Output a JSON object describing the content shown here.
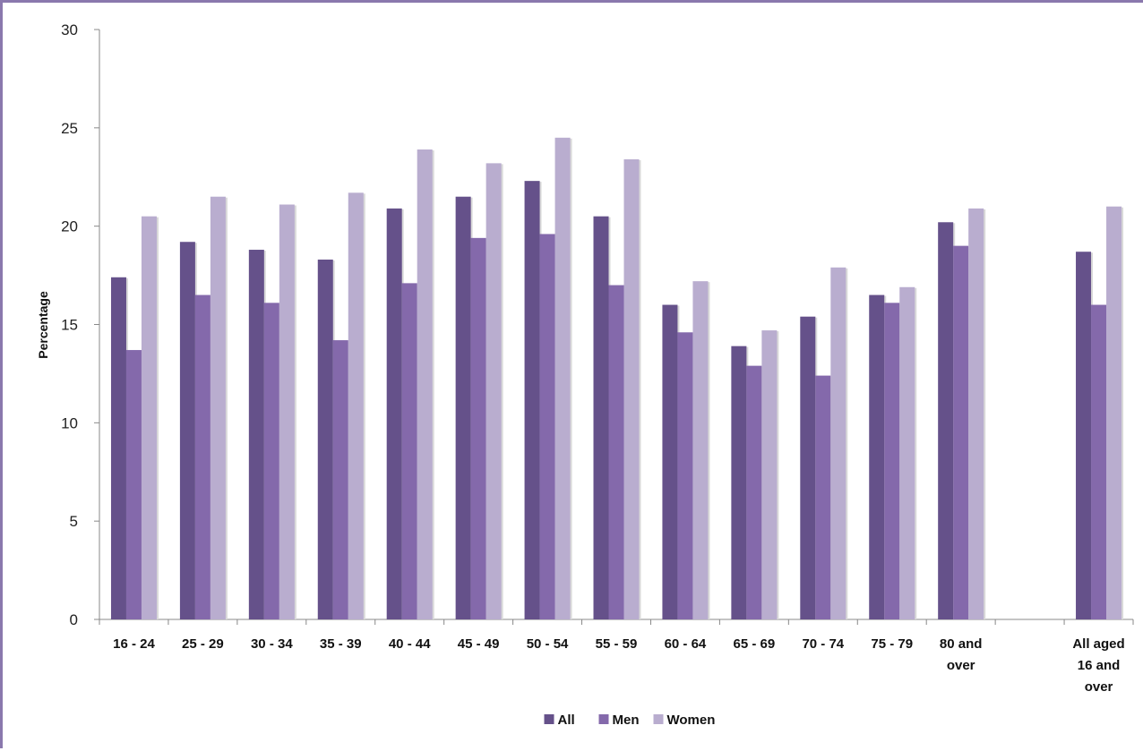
{
  "chart_data": {
    "type": "bar",
    "title": "",
    "xlabel": "",
    "ylabel": "Percentage",
    "ylim": [
      0,
      30
    ],
    "yticks": [
      0,
      5,
      10,
      15,
      20,
      25,
      30
    ],
    "grid": false,
    "legend_position": "bottom",
    "categories": [
      [
        "16 - 24"
      ],
      [
        "25 - 29"
      ],
      [
        "30 - 34"
      ],
      [
        "35 - 39"
      ],
      [
        "40 - 44"
      ],
      [
        "45 - 49"
      ],
      [
        "50 - 54"
      ],
      [
        "55 - 59"
      ],
      [
        "60 - 64"
      ],
      [
        "65 - 69"
      ],
      [
        "70 - 74"
      ],
      [
        "75 - 79"
      ],
      [
        "80 and",
        "over"
      ],
      [
        ""
      ],
      [
        "All aged",
        "16 and",
        "over"
      ]
    ],
    "series": [
      {
        "name": "All",
        "color": "#65518a",
        "values": [
          17.4,
          19.2,
          18.8,
          18.3,
          20.9,
          21.5,
          22.3,
          20.5,
          16.0,
          13.9,
          15.4,
          16.5,
          20.2,
          null,
          18.7
        ]
      },
      {
        "name": "Men",
        "color": "#8469ab",
        "values": [
          13.7,
          16.5,
          16.1,
          14.2,
          17.1,
          19.4,
          19.6,
          17.0,
          14.6,
          12.9,
          12.4,
          16.1,
          19.0,
          null,
          16.0
        ]
      },
      {
        "name": "Women",
        "color": "#b9adcf",
        "values": [
          20.5,
          21.5,
          21.1,
          21.7,
          23.9,
          23.2,
          24.5,
          23.4,
          17.2,
          14.7,
          17.9,
          16.9,
          20.9,
          null,
          21.0
        ]
      }
    ]
  }
}
